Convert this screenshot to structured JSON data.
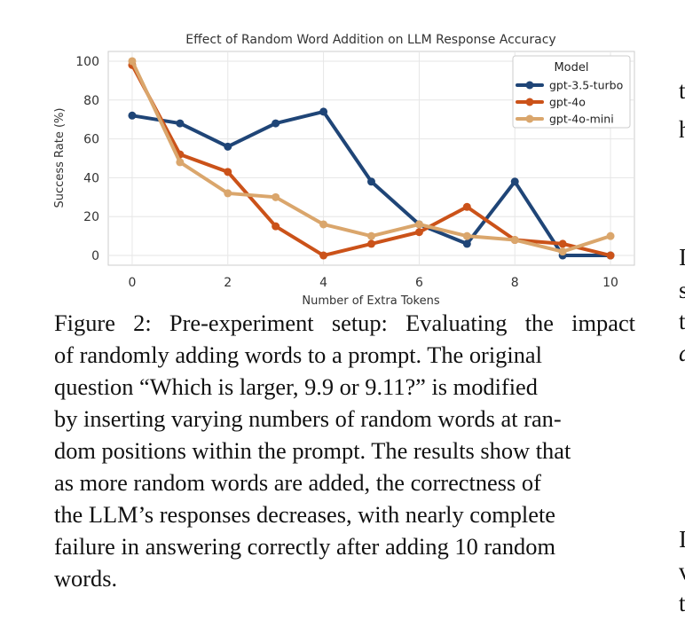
{
  "figure": {
    "caption_lines": [
      "Figure 2: Pre-experiment setup: Evaluating the impact",
      "of randomly adding words to a prompt.  The original",
      "question “Which is larger, 9.9 or 9.11?” is modified",
      "by inserting varying numbers of random words at ran-",
      "dom positions within the prompt. The results show that",
      "as more random words are added, the correctness of",
      "the LLM’s responses decreases, with nearly complete",
      "failure in answering correctly after adding 10 random",
      "words."
    ]
  },
  "right_column_fragments": [
    "t",
    "h",
    "I",
    "s",
    "t",
    "a",
    "I",
    "v",
    "t"
  ],
  "chart_data": {
    "type": "line",
    "title": "Effect of Random Word Addition on LLM Response Accuracy",
    "xlabel": "Number of Extra Tokens",
    "ylabel": "Success Rate (%)",
    "xlim": [
      -0.5,
      10.5
    ],
    "ylim": [
      -5,
      105
    ],
    "xticks": [
      0,
      2,
      4,
      6,
      8,
      10
    ],
    "yticks": [
      0,
      20,
      40,
      60,
      80,
      100
    ],
    "grid": true,
    "legend": {
      "title": "Model",
      "placement": "top-right"
    },
    "x": [
      0,
      1,
      2,
      3,
      4,
      5,
      6,
      7,
      8,
      9,
      10
    ],
    "series": [
      {
        "name": "gpt-3.5-turbo",
        "color": "#1f4577",
        "values": [
          72,
          68,
          56,
          68,
          74,
          38,
          16,
          6,
          38,
          0,
          0
        ]
      },
      {
        "name": "gpt-4o",
        "color": "#cb5219",
        "values": [
          98,
          52,
          43,
          15,
          0,
          6,
          12,
          25,
          8,
          6,
          0
        ]
      },
      {
        "name": "gpt-4o-mini",
        "color": "#daa66c",
        "values": [
          100,
          48,
          32,
          30,
          16,
          10,
          16,
          10,
          8,
          2,
          10
        ]
      }
    ]
  }
}
